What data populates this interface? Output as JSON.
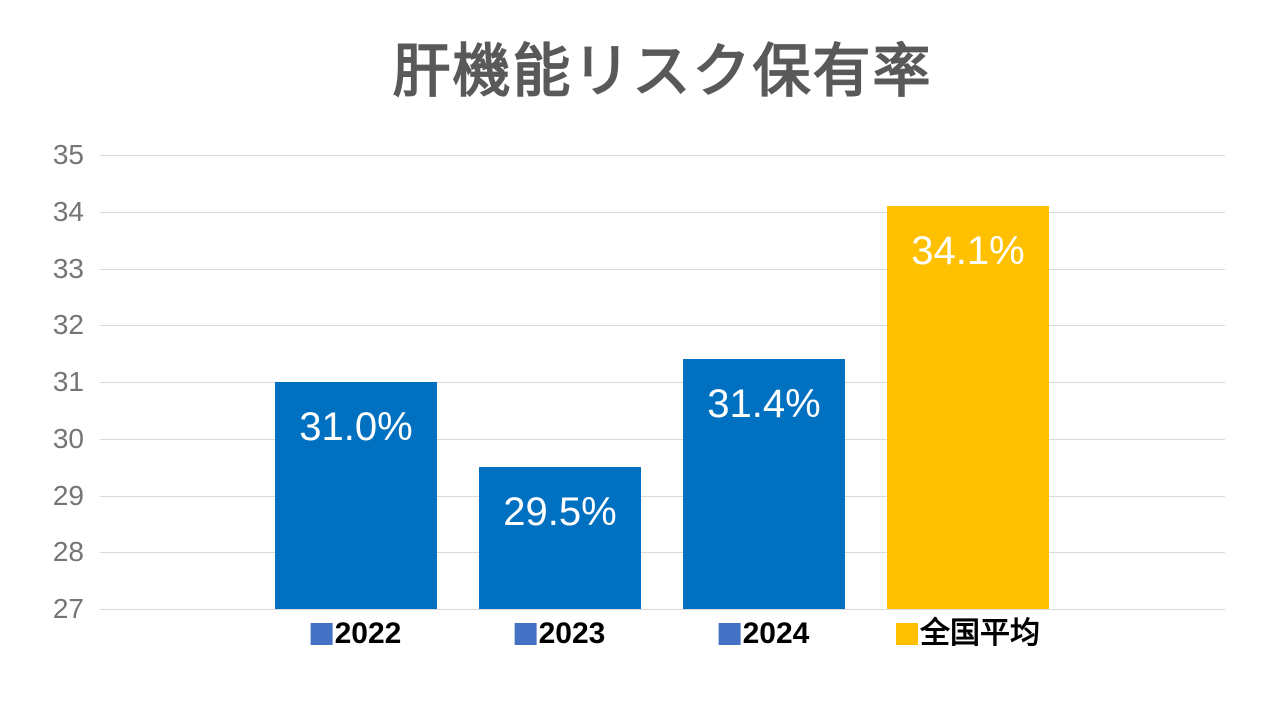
{
  "chart_data": {
    "type": "bar",
    "title": "肝機能リスク保有率",
    "categories": [
      "2022",
      "2023",
      "2024",
      "全国平均"
    ],
    "values": [
      31.0,
      29.5,
      31.4,
      34.1
    ],
    "value_labels": [
      "31.0%",
      "29.5%",
      "31.4%",
      "34.1%"
    ],
    "bar_colors": [
      "#0070C0",
      "#0070C0",
      "#0070C0",
      "#FFC000"
    ],
    "legend_marker_colors": [
      "#4472C4",
      "#4472C4",
      "#4472C4",
      "#FFC000"
    ],
    "yticks": [
      27,
      28,
      29,
      30,
      31,
      32,
      33,
      34,
      35
    ],
    "ylim": [
      27,
      35
    ],
    "xlabel": "",
    "ylabel": "",
    "grid": true,
    "legend_position": "bottom"
  },
  "colors": {
    "background": "#FFFFFF",
    "title_text": "#595959",
    "axis_label_text": "#757575",
    "gridline": "#D9D9D9",
    "data_label_text": "#FFFFFF",
    "legend_text": "#000000",
    "bar_blue": "#0070C0",
    "bar_yellow": "#FFC000",
    "legend_blue": "#4472C4"
  }
}
